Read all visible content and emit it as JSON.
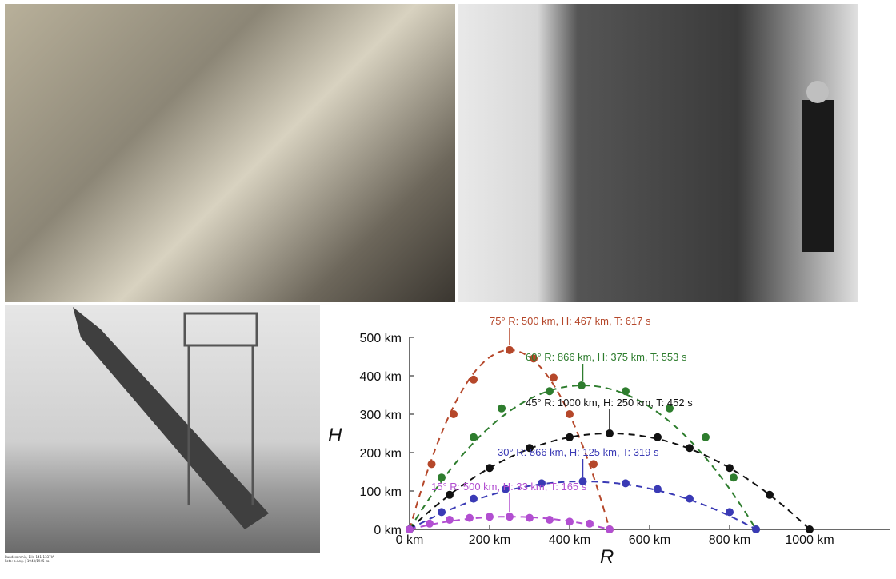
{
  "photos": {
    "machine_desc": "",
    "computer_desc": "",
    "rocket_desc": "",
    "rocket_caption_line1": "Bundesarchiv, Bild 141-1337IA",
    "rocket_caption_line2": "Foto: o.Ang. | 1943/1945 ca."
  },
  "chart_data": {
    "type": "scatter",
    "xlabel": "R",
    "ylabel": "H",
    "xlim": [
      0,
      1200
    ],
    "ylim": [
      0,
      500
    ],
    "x_ticks": [
      "0 km",
      "200 km",
      "400 km",
      "600 km",
      "800 km",
      "1000 km"
    ],
    "y_ticks": [
      "0 km",
      "100 km",
      "200 km",
      "300 km",
      "400 km",
      "500 km"
    ],
    "series": [
      {
        "angle": "75°",
        "color": "#b5472a",
        "R": 500,
        "H": 467,
        "T": 617,
        "points": [
          [
            0,
            0
          ],
          [
            55,
            170
          ],
          [
            110,
            300
          ],
          [
            160,
            390
          ],
          [
            250,
            467
          ],
          [
            310,
            445
          ],
          [
            360,
            395
          ],
          [
            400,
            300
          ],
          [
            460,
            170
          ],
          [
            500,
            0
          ]
        ]
      },
      {
        "angle": "60°",
        "color": "#2e7d2e",
        "R": 866,
        "H": 375,
        "T": 553,
        "points": [
          [
            0,
            0
          ],
          [
            80,
            135
          ],
          [
            160,
            240
          ],
          [
            230,
            315
          ],
          [
            350,
            360
          ],
          [
            430,
            375
          ],
          [
            540,
            360
          ],
          [
            650,
            315
          ],
          [
            740,
            240
          ],
          [
            810,
            135
          ],
          [
            866,
            0
          ]
        ]
      },
      {
        "angle": "45°",
        "color": "#111111",
        "R": 1000,
        "H": 250,
        "T": 452,
        "points": [
          [
            0,
            0
          ],
          [
            100,
            90
          ],
          [
            200,
            160
          ],
          [
            300,
            212
          ],
          [
            400,
            240
          ],
          [
            500,
            250
          ],
          [
            620,
            240
          ],
          [
            700,
            212
          ],
          [
            800,
            160
          ],
          [
            900,
            90
          ],
          [
            1000,
            0
          ]
        ]
      },
      {
        "angle": "30°",
        "color": "#3a3ab5",
        "R": 866,
        "H": 125,
        "T": 319,
        "points": [
          [
            0,
            0
          ],
          [
            80,
            45
          ],
          [
            160,
            80
          ],
          [
            240,
            105
          ],
          [
            330,
            120
          ],
          [
            433,
            125
          ],
          [
            540,
            120
          ],
          [
            620,
            105
          ],
          [
            700,
            80
          ],
          [
            800,
            45
          ],
          [
            866,
            0
          ]
        ]
      },
      {
        "angle": "15°",
        "color": "#b24fd1",
        "R": 500,
        "H": 33,
        "T": 165,
        "points": [
          [
            0,
            0
          ],
          [
            50,
            15
          ],
          [
            100,
            25
          ],
          [
            150,
            30
          ],
          [
            200,
            33
          ],
          [
            250,
            33
          ],
          [
            300,
            30
          ],
          [
            350,
            25
          ],
          [
            400,
            20
          ],
          [
            450,
            15
          ],
          [
            500,
            0
          ]
        ]
      }
    ],
    "annotations": [
      {
        "prefix": "75°",
        "R": "500 km",
        "H": "467 km",
        "T": "617 s"
      },
      {
        "prefix": "60°",
        "R": "866 km",
        "H": "375 km",
        "T": "553 s"
      },
      {
        "prefix": "45°",
        "R": "1000 km",
        "H": "250 km",
        "T": "452 s"
      },
      {
        "prefix": "30°",
        "R": "866 km",
        "H": "125 km",
        "T": "319 s"
      },
      {
        "prefix": "15°",
        "R": "500 km",
        "H": "33 km",
        "T": "165 s"
      }
    ]
  }
}
